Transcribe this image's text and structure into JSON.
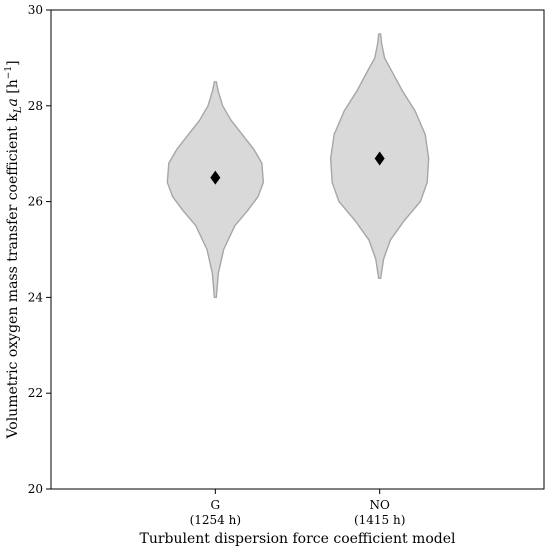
{
  "chart_data": {
    "type": "violin",
    "xlabel": "Turbulent dispersion force coefficient model",
    "ylabel": "Volumetric oxygen mass transfer coefficient k",
    "ylabel_subscript": "L",
    "ylabel_suffix": "a [h",
    "ylabel_superscript": "−1",
    "ylabel_end": "]",
    "ylim": [
      20,
      30
    ],
    "yticks": [
      20,
      22,
      24,
      26,
      28,
      30
    ],
    "categories": [
      "G",
      "NO"
    ],
    "category_sublabels": [
      "(1254 h)",
      "(1415 h)"
    ],
    "grid": false,
    "violin_color": "#d9d9d9",
    "edge_color": "#a6a6a6",
    "marker_color": "#000000",
    "violins": [
      {
        "category": "G",
        "median": 26.5,
        "min": 24.0,
        "max": 28.5,
        "profile": [
          [
            24.0,
            0.02
          ],
          [
            24.5,
            0.06
          ],
          [
            25.0,
            0.17
          ],
          [
            25.5,
            0.4
          ],
          [
            25.8,
            0.65
          ],
          [
            26.1,
            0.87
          ],
          [
            26.4,
            0.98
          ],
          [
            26.8,
            0.95
          ],
          [
            27.1,
            0.78
          ],
          [
            27.4,
            0.55
          ],
          [
            27.7,
            0.32
          ],
          [
            28.0,
            0.15
          ],
          [
            28.3,
            0.06
          ],
          [
            28.5,
            0.02
          ]
        ]
      },
      {
        "category": "NO",
        "median": 26.9,
        "min": 24.4,
        "max": 29.5,
        "profile": [
          [
            24.4,
            0.02
          ],
          [
            24.8,
            0.08
          ],
          [
            25.2,
            0.22
          ],
          [
            25.6,
            0.5
          ],
          [
            26.0,
            0.83
          ],
          [
            26.4,
            0.97
          ],
          [
            26.9,
            1.0
          ],
          [
            27.4,
            0.93
          ],
          [
            27.9,
            0.72
          ],
          [
            28.3,
            0.47
          ],
          [
            28.7,
            0.26
          ],
          [
            29.0,
            0.1
          ],
          [
            29.3,
            0.04
          ],
          [
            29.5,
            0.02
          ]
        ]
      }
    ]
  }
}
